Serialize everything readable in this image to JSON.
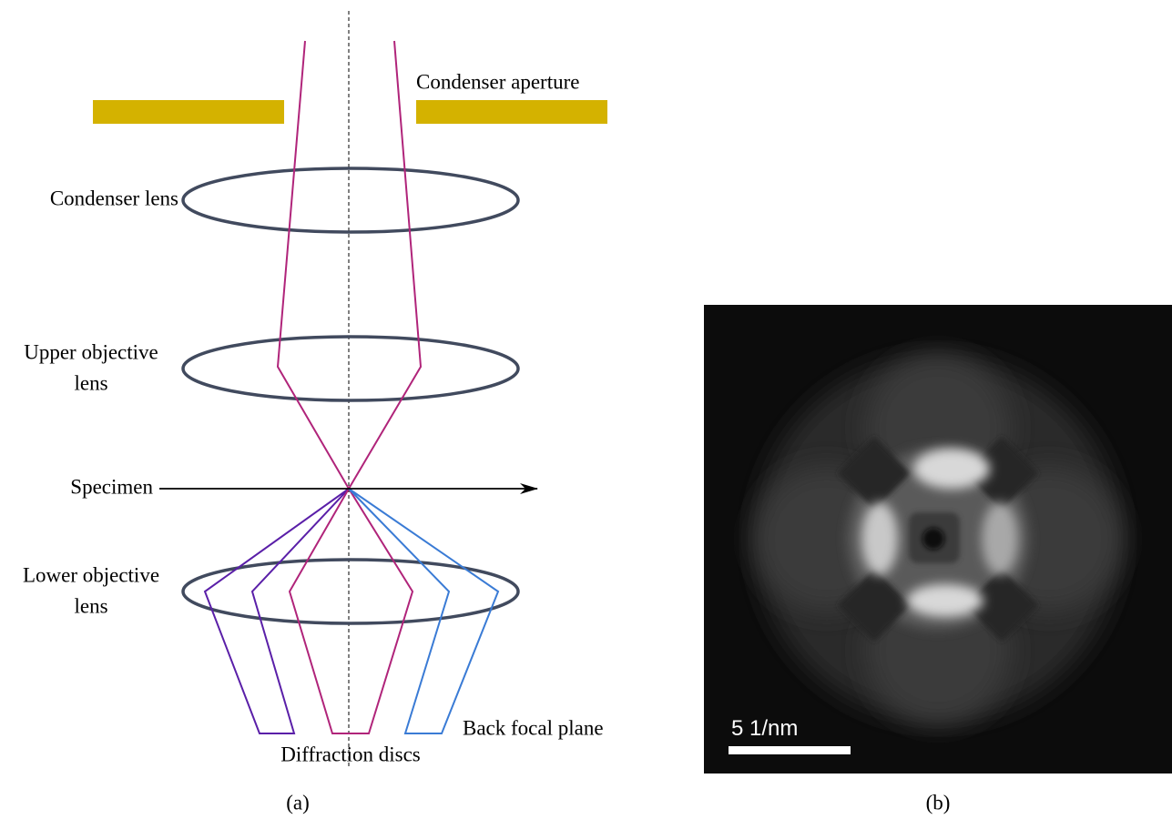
{
  "panel_a": {
    "labels": {
      "condenser_aperture": [
        "Condenser aperture"
      ],
      "condenser_lens": [
        "Condenser lens"
      ],
      "upper_objective_lens": [
        "Upper objective",
        "lens"
      ],
      "specimen": [
        "Specimen"
      ],
      "lower_objective_lens": [
        "Lower objective",
        "lens"
      ],
      "back_focal_plane": [
        "Back focal plane"
      ],
      "diffraction_discs": [
        "Diffraction discs"
      ]
    },
    "caption": "(a)"
  },
  "panel_b": {
    "scale_bar_label": "5 1/nm",
    "caption": "(b)"
  }
}
